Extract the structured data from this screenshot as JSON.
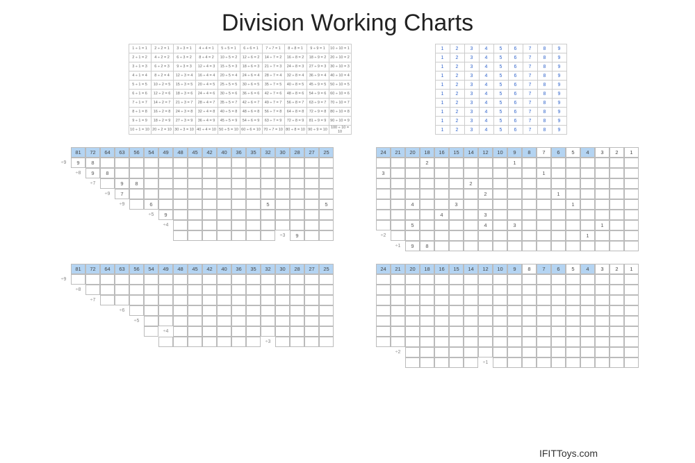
{
  "title": "Division Working Charts",
  "footer": "IFITToys.com",
  "colors": {
    "header_blue": "#b4d4f2",
    "border": "#cccccc",
    "text_blue": "#3366cc"
  },
  "chart1": {
    "type": "table",
    "rows": 10,
    "cols": 10,
    "cells": [
      [
        "1 ÷ 1 = 1",
        "2 ÷ 2 = 1",
        "3 ÷ 3 = 1",
        "4 ÷ 4 = 1",
        "5 ÷ 5 = 1",
        "6 ÷ 6 = 1",
        "7 ÷ 7 = 1",
        "8 ÷ 8 = 1",
        "9 ÷ 9 = 1",
        "10 ÷ 10 = 1"
      ],
      [
        "2 ÷ 1 = 2",
        "4 ÷ 2 = 2",
        "6 ÷ 3 = 2",
        "8 ÷ 4 = 2",
        "10 ÷ 5 = 2",
        "12 ÷ 6 = 2",
        "14 ÷ 7 = 2",
        "16 ÷ 8 = 2",
        "18 ÷ 9 = 2",
        "20 ÷ 10 = 2"
      ],
      [
        "3 ÷ 1 = 3",
        "6 ÷ 2 = 3",
        "9 ÷ 3 = 3",
        "12 ÷ 4 = 3",
        "15 ÷ 5 = 3",
        "18 ÷ 6 = 3",
        "21 ÷ 7 = 3",
        "24 ÷ 8 = 3",
        "27 ÷ 9 = 3",
        "30 ÷ 10 = 3"
      ],
      [
        "4 ÷ 1 = 4",
        "8 ÷ 2 = 4",
        "12 ÷ 3 = 4",
        "16 ÷ 4 = 4",
        "20 ÷ 5 = 4",
        "24 ÷ 6 = 4",
        "28 ÷ 7 = 4",
        "32 ÷ 8 = 4",
        "36 ÷ 9 = 4",
        "40 ÷ 10 = 4"
      ],
      [
        "5 ÷ 1 = 5",
        "10 ÷ 2 = 5",
        "15 ÷ 3 = 5",
        "20 ÷ 4 = 5",
        "25 ÷ 5 = 5",
        "30 ÷ 6 = 5",
        "35 ÷ 7 = 5",
        "40 ÷ 8 = 5",
        "45 ÷ 9 = 5",
        "50 ÷ 10 = 5"
      ],
      [
        "6 ÷ 1 = 6",
        "12 ÷ 2 = 6",
        "18 ÷ 3 = 6",
        "24 ÷ 4 = 6",
        "30 ÷ 5 = 6",
        "36 ÷ 6 = 6",
        "42 ÷ 7 = 6",
        "48 ÷ 8 = 6",
        "54 ÷ 9 = 6",
        "60 ÷ 10 = 6"
      ],
      [
        "7 ÷ 1 = 7",
        "14 ÷ 2 = 7",
        "21 ÷ 3 = 7",
        "28 ÷ 4 = 7",
        "35 ÷ 5 = 7",
        "42 ÷ 6 = 7",
        "49 ÷ 7 = 7",
        "56 ÷ 8 = 7",
        "63 ÷ 9 = 7",
        "70 ÷ 10 = 7"
      ],
      [
        "8 ÷ 1 = 8",
        "16 ÷ 2 = 8",
        "24 ÷ 3 = 8",
        "32 ÷ 4 = 8",
        "40 ÷ 5 = 8",
        "48 ÷ 6 = 8",
        "56 ÷ 7 = 8",
        "64 ÷ 8 = 8",
        "72 ÷ 9 = 8",
        "80 ÷ 10 = 8"
      ],
      [
        "9 ÷ 1 = 9",
        "18 ÷ 2 = 9",
        "27 ÷ 3 = 9",
        "36 ÷ 4 = 9",
        "45 ÷ 5 = 9",
        "54 ÷ 6 = 9",
        "63 ÷ 7 = 9",
        "72 ÷ 8 = 9",
        "81 ÷ 9 = 9",
        "90 ÷ 10 = 9"
      ],
      [
        "10 ÷ 1 = 10",
        "20 ÷ 2 = 10",
        "30 ÷ 3 = 10",
        "40 ÷ 4 = 10",
        "50 ÷ 5 = 10",
        "60 ÷ 6 = 10",
        "70 ÷ 7 = 10",
        "80 ÷ 8 = 10",
        "90 ÷ 9 = 10",
        "100 ÷ 10 = 10"
      ]
    ]
  },
  "chart2": {
    "type": "table",
    "rows": 10,
    "cols": 9,
    "row": [
      "1",
      "2",
      "3",
      "4",
      "5",
      "6",
      "7",
      "8",
      "9"
    ]
  },
  "chart3": {
    "type": "staircase",
    "header": [
      "81",
      "72",
      "64",
      "63",
      "56",
      "54",
      "49",
      "48",
      "45",
      "42",
      "40",
      "36",
      "35",
      "32",
      "30",
      "28",
      "27",
      "25"
    ],
    "header_style": "blue",
    "rows": [
      {
        "label": "÷9",
        "offset": 0,
        "vals": [
          "9",
          "8",
          "",
          "",
          "",
          "",
          "",
          "",
          "",
          "",
          "",
          "",
          "",
          "",
          "",
          "",
          "",
          ""
        ]
      },
      {
        "label": "÷8",
        "offset": 1,
        "vals": [
          "9",
          "8",
          "",
          "",
          "",
          "",
          "",
          "",
          "",
          "",
          "",
          "",
          "",
          "",
          "",
          "",
          ""
        ]
      },
      {
        "label": "÷7",
        "offset": 2,
        "vals": [
          "",
          "9",
          "8",
          "",
          "",
          "",
          "",
          "",
          "",
          "",
          "",
          "",
          "",
          "",
          "",
          ""
        ]
      },
      {
        "label": "÷9",
        "offset": 3,
        "vals": [
          "7",
          "",
          "",
          "",
          "",
          "",
          "",
          "",
          "",
          "",
          "",
          "",
          "",
          "",
          ""
        ]
      },
      {
        "label": "÷9",
        "offset": 4,
        "vals": [
          "",
          "6",
          "",
          "",
          "",
          "",
          "",
          "",
          "",
          "5",
          "",
          "",
          "",
          "5"
        ]
      },
      {
        "label": "",
        "offset": 5,
        "vals": [
          "÷5",
          "9",
          "",
          "",
          "",
          "",
          "",
          "",
          "",
          "",
          "",
          "",
          ""
        ]
      },
      {
        "label": "",
        "offset": 6,
        "vals": [
          "÷4",
          "",
          "",
          "",
          "",
          "",
          "",
          "",
          "",
          "",
          "",
          ""
        ]
      },
      {
        "label": "",
        "offset": 7,
        "vals": [
          "",
          "",
          "",
          "",
          "",
          "",
          "",
          "÷3",
          "9",
          "",
          ""
        ]
      }
    ]
  },
  "chart4": {
    "type": "staircase",
    "header_spec": [
      {
        "v": "24",
        "c": "h"
      },
      {
        "v": "21",
        "c": "h"
      },
      {
        "v": "20",
        "c": "h"
      },
      {
        "v": "18",
        "c": "h"
      },
      {
        "v": "16",
        "c": "h"
      },
      {
        "v": "15",
        "c": "h"
      },
      {
        "v": "14",
        "c": "h"
      },
      {
        "v": "12",
        "c": "h"
      },
      {
        "v": "10",
        "c": "h"
      },
      {
        "v": "9",
        "c": "h"
      },
      {
        "v": "8",
        "c": "h"
      },
      {
        "v": "7",
        "c": "hw"
      },
      {
        "v": "6",
        "c": "h"
      },
      {
        "v": "5",
        "c": "hw"
      },
      {
        "v": "4",
        "c": "h"
      },
      {
        "v": "3",
        "c": "hw"
      },
      {
        "v": "2",
        "c": "hw"
      },
      {
        "v": "1",
        "c": "hw"
      }
    ],
    "rows": [
      {
        "label": "",
        "offset": 0,
        "vals": [
          "",
          "",
          "",
          "2",
          "",
          "",
          "",
          "",
          "",
          "1",
          "",
          "",
          "",
          "",
          "",
          "",
          "",
          ""
        ]
      },
      {
        "label": "",
        "offset": 0,
        "vals": [
          "3",
          "",
          "",
          "",
          "",
          "",
          "",
          "",
          "",
          "",
          "",
          "1",
          "",
          "",
          "",
          "",
          "",
          ""
        ]
      },
      {
        "label": "",
        "offset": 0,
        "vals": [
          "",
          "",
          "",
          "",
          "",
          "",
          "2",
          "",
          "",
          "",
          "",
          "",
          "",
          "",
          "",
          "",
          "",
          ""
        ]
      },
      {
        "label": "",
        "offset": 0,
        "vals": [
          "",
          "",
          "",
          "",
          "",
          "",
          "",
          "2",
          "",
          "",
          "",
          "",
          "1",
          "",
          "",
          "",
          "",
          ""
        ]
      },
      {
        "label": "",
        "offset": 0,
        "vals": [
          "",
          "",
          "4",
          "",
          "",
          "3",
          "",
          "",
          "",
          "",
          "",
          "",
          "",
          "1",
          "",
          "",
          "",
          ""
        ]
      },
      {
        "label": "",
        "offset": 0,
        "vals": [
          "",
          "",
          "",
          "",
          "4",
          "",
          "",
          "3",
          "",
          "",
          "",
          "",
          "",
          "",
          "",
          "",
          "",
          ""
        ]
      },
      {
        "label": "",
        "offset": 0,
        "vals": [
          "",
          "",
          "5",
          "",
          "",
          "",
          "",
          "4",
          "",
          "3",
          "",
          "",
          "",
          "",
          "",
          "1",
          "",
          ""
        ]
      },
      {
        "label": "÷2",
        "offset": 1,
        "vals": [
          "",
          "",
          "",
          "",
          "",
          "",
          "",
          "",
          "",
          "",
          "",
          "",
          "",
          "1",
          "",
          "",
          " "
        ]
      },
      {
        "label": "",
        "offset": 1,
        "vals": [
          "÷1",
          "9",
          "8",
          "",
          "",
          "",
          "",
          "",
          "",
          "",
          "",
          "",
          "",
          "",
          "",
          "",
          ""
        ]
      }
    ]
  },
  "chart5": {
    "type": "staircase",
    "header": [
      "81",
      "72",
      "64",
      "63",
      "56",
      "54",
      "49",
      "48",
      "45",
      "42",
      "40",
      "36",
      "35",
      "32",
      "30",
      "28",
      "27",
      "25"
    ],
    "header_style": "blue",
    "rows": [
      {
        "label": "÷9",
        "offset": 0,
        "vals": [
          "",
          "",
          "",
          "",
          "",
          "",
          "",
          "",
          "",
          "",
          "",
          "",
          "",
          "",
          "",
          "",
          "",
          ""
        ]
      },
      {
        "label": "÷8",
        "offset": 1,
        "vals": [
          "",
          "",
          "",
          "",
          "",
          "",
          "",
          "",
          "",
          "",
          "",
          "",
          "",
          "",
          "",
          "",
          ""
        ]
      },
      {
        "label": "÷7",
        "offset": 2,
        "vals": [
          "",
          "",
          "",
          "",
          "",
          "",
          "",
          "",
          "",
          "",
          "",
          "",
          "",
          "",
          "",
          ""
        ]
      },
      {
        "label": "",
        "offset": 3,
        "vals": [
          "÷6",
          "",
          "",
          "",
          "",
          "",
          "",
          "",
          "",
          "",
          "",
          "",
          "",
          "",
          ""
        ]
      },
      {
        "label": "",
        "offset": 4,
        "vals": [
          "÷5",
          "",
          "",
          "",
          "",
          "",
          "",
          "",
          "",
          "",
          "",
          "",
          "",
          ""
        ]
      },
      {
        "label": "",
        "offset": 5,
        "vals": [
          "",
          "÷4",
          "",
          "",
          "",
          "",
          "",
          "",
          "",
          "",
          "",
          "",
          ""
        ]
      },
      {
        "label": "",
        "offset": 6,
        "vals": [
          "",
          "",
          "",
          "",
          "",
          "",
          "",
          "÷3",
          "",
          "",
          "",
          ""
        ]
      }
    ]
  },
  "chart6": {
    "type": "staircase",
    "header_spec": [
      {
        "v": "24",
        "c": "h"
      },
      {
        "v": "21",
        "c": "h"
      },
      {
        "v": "20",
        "c": "h"
      },
      {
        "v": "18",
        "c": "h"
      },
      {
        "v": "16",
        "c": "h"
      },
      {
        "v": "15",
        "c": "h"
      },
      {
        "v": "14",
        "c": "h"
      },
      {
        "v": "12",
        "c": "h"
      },
      {
        "v": "10",
        "c": "h"
      },
      {
        "v": "9",
        "c": "h"
      },
      {
        "v": "8",
        "c": "hw"
      },
      {
        "v": "7",
        "c": "h"
      },
      {
        "v": "6",
        "c": "h"
      },
      {
        "v": "5",
        "c": "hw"
      },
      {
        "v": "4",
        "c": "h"
      },
      {
        "v": "3",
        "c": "hw"
      },
      {
        "v": "2",
        "c": "hw"
      },
      {
        "v": "1",
        "c": "hw"
      }
    ],
    "rows": [
      {
        "label": "",
        "offset": 0,
        "vals": [
          "",
          "",
          "",
          "",
          "",
          "",
          "",
          "",
          "",
          "",
          "",
          "",
          "",
          "",
          "",
          "",
          "",
          ""
        ]
      },
      {
        "label": "",
        "offset": 0,
        "vals": [
          "",
          "",
          "",
          "",
          "",
          "",
          "",
          "",
          "",
          "",
          "",
          "",
          "",
          "",
          "",
          "",
          "",
          ""
        ]
      },
      {
        "label": "",
        "offset": 0,
        "vals": [
          "",
          "",
          "",
          "",
          "",
          "",
          "",
          "",
          "",
          "",
          "",
          "",
          "",
          "",
          "",
          "",
          "",
          ""
        ]
      },
      {
        "label": "",
        "offset": 0,
        "vals": [
          "",
          "",
          "",
          "",
          "",
          "",
          "",
          "",
          "",
          "",
          "",
          "",
          "",
          "",
          "",
          "",
          "",
          ""
        ]
      },
      {
        "label": "",
        "offset": 0,
        "vals": [
          "",
          "",
          "",
          "",
          "",
          "",
          "",
          "",
          "",
          "",
          "",
          "",
          "",
          "",
          "",
          "",
          "",
          ""
        ]
      },
      {
        "label": "",
        "offset": 0,
        "vals": [
          "",
          "",
          "",
          "",
          "",
          "",
          "",
          "",
          "",
          "",
          "",
          "",
          "",
          "",
          "",
          "",
          "",
          ""
        ]
      },
      {
        "label": "",
        "offset": 0,
        "vals": [
          "",
          "",
          "",
          "",
          "",
          "",
          "",
          "",
          "",
          "",
          "",
          "",
          "",
          "",
          "",
          "",
          "",
          ""
        ]
      },
      {
        "label": "",
        "offset": 1,
        "vals": [
          "÷2",
          "",
          "",
          "",
          "",
          "",
          "",
          "",
          "",
          "",
          "",
          "",
          "",
          "",
          "",
          "",
          ""
        ]
      },
      {
        "label": "",
        "offset": 2,
        "vals": [
          "",
          "",
          "",
          "",
          "",
          "÷1",
          "",
          "",
          "",
          "",
          "",
          "",
          "",
          "",
          "",
          ""
        ]
      }
    ]
  }
}
